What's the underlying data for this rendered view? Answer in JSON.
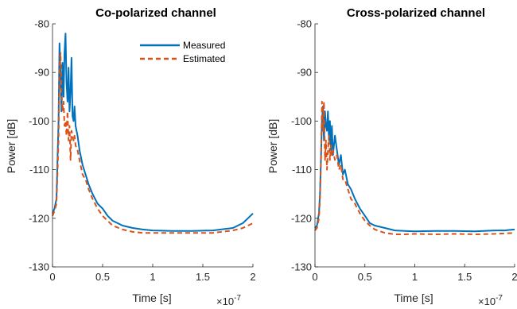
{
  "chart_data": [
    {
      "type": "line",
      "title": "Co-polarized channel",
      "xlabel": "Time [s]",
      "ylabel": "Power [dB]",
      "x_exponent_label": "×10",
      "x_exponent_power": "-7",
      "xlim": [
        0,
        2
      ],
      "ylim": [
        -130,
        -80
      ],
      "x_ticks": [
        "0",
        "0.5",
        "1",
        "1.5",
        "2"
      ],
      "y_ticks": [
        "-80",
        "-90",
        "-100",
        "-110",
        "-120",
        "-130"
      ],
      "legend": "top-right",
      "grid": false,
      "series": [
        {
          "name": "Measured",
          "color": "#0072BD",
          "style": "solid",
          "x": [
            0,
            0.02,
            0.04,
            0.06,
            0.07,
            0.08,
            0.09,
            0.1,
            0.11,
            0.12,
            0.13,
            0.14,
            0.15,
            0.16,
            0.17,
            0.18,
            0.19,
            0.2,
            0.21,
            0.22,
            0.23,
            0.25,
            0.27,
            0.3,
            0.33,
            0.36,
            0.4,
            0.45,
            0.5,
            0.55,
            0.6,
            0.7,
            0.8,
            0.9,
            1.0,
            1.2,
            1.4,
            1.6,
            1.8,
            1.9,
            1.95,
            2.0
          ],
          "y": [
            -119,
            -118,
            -116,
            -100,
            -84,
            -90,
            -98,
            -88,
            -95,
            -86,
            -82,
            -92,
            -96,
            -89,
            -98,
            -94,
            -87,
            -99,
            -100,
            -97,
            -101,
            -103,
            -106,
            -109,
            -111,
            -113,
            -115,
            -117,
            -118,
            -119.5,
            -120.5,
            -121.5,
            -122,
            -122.3,
            -122.5,
            -122.6,
            -122.6,
            -122.5,
            -122,
            -121,
            -120,
            -119
          ]
        },
        {
          "name": "Estimated",
          "color": "#D95319",
          "style": "dashed",
          "x": [
            0,
            0.02,
            0.04,
            0.06,
            0.07,
            0.08,
            0.09,
            0.1,
            0.11,
            0.12,
            0.13,
            0.14,
            0.15,
            0.16,
            0.17,
            0.18,
            0.19,
            0.2,
            0.21,
            0.22,
            0.23,
            0.25,
            0.27,
            0.3,
            0.33,
            0.36,
            0.4,
            0.45,
            0.5,
            0.55,
            0.6,
            0.7,
            0.8,
            0.9,
            1.0,
            1.2,
            1.4,
            1.6,
            1.8,
            1.9,
            1.95,
            2.0
          ],
          "y": [
            -119.5,
            -118.5,
            -117,
            -104,
            -89,
            -86,
            -94,
            -98,
            -96,
            -101,
            -100,
            -103,
            -98,
            -104,
            -101,
            -108,
            -102,
            -103,
            -104,
            -103,
            -105,
            -106,
            -108,
            -111,
            -112,
            -114,
            -116,
            -118,
            -119.5,
            -120.5,
            -121.5,
            -122.3,
            -122.8,
            -123,
            -123,
            -123,
            -123,
            -123,
            -122.5,
            -122,
            -121.5,
            -121
          ]
        }
      ]
    },
    {
      "type": "line",
      "title": "Cross-polarized channel",
      "xlabel": "Time [s]",
      "ylabel": "Power [dB]",
      "x_exponent_label": "×10",
      "x_exponent_power": "-7",
      "xlim": [
        0,
        2
      ],
      "ylim": [
        -130,
        -80
      ],
      "x_ticks": [
        "0",
        "0.5",
        "1",
        "1.5",
        "2"
      ],
      "y_ticks": [
        "-80",
        "-90",
        "-100",
        "-110",
        "-120",
        "-130"
      ],
      "grid": false,
      "series": [
        {
          "name": "Measured",
          "color": "#0072BD",
          "style": "solid",
          "x": [
            0,
            0.02,
            0.04,
            0.05,
            0.06,
            0.07,
            0.08,
            0.09,
            0.1,
            0.11,
            0.12,
            0.13,
            0.14,
            0.15,
            0.16,
            0.17,
            0.18,
            0.2,
            0.22,
            0.24,
            0.26,
            0.28,
            0.3,
            0.33,
            0.36,
            0.4,
            0.45,
            0.5,
            0.55,
            0.6,
            0.7,
            0.8,
            0.9,
            1.0,
            1.2,
            1.4,
            1.6,
            1.8,
            1.9,
            2.0
          ],
          "y": [
            -122,
            -121.5,
            -119,
            -115,
            -108,
            -100,
            -97,
            -104,
            -98,
            -101,
            -102,
            -98,
            -104,
            -100,
            -106,
            -101,
            -107,
            -103,
            -106,
            -109,
            -107,
            -111,
            -110,
            -113,
            -114,
            -116,
            -118,
            -119.5,
            -121,
            -121.5,
            -122,
            -122.5,
            -122.6,
            -122.7,
            -122.6,
            -122.6,
            -122.7,
            -122.5,
            -122.5,
            -122.3
          ]
        },
        {
          "name": "Estimated",
          "color": "#D95319",
          "style": "dashed",
          "x": [
            0,
            0.02,
            0.04,
            0.05,
            0.06,
            0.07,
            0.08,
            0.09,
            0.1,
            0.11,
            0.12,
            0.13,
            0.14,
            0.15,
            0.16,
            0.17,
            0.18,
            0.2,
            0.22,
            0.24,
            0.26,
            0.28,
            0.3,
            0.33,
            0.36,
            0.4,
            0.45,
            0.5,
            0.55,
            0.6,
            0.7,
            0.8,
            0.9,
            1.0,
            1.2,
            1.4,
            1.6,
            1.8,
            1.9,
            2.0
          ],
          "y": [
            -122.5,
            -122,
            -120,
            -116,
            -109,
            -96,
            -102,
            -96,
            -108,
            -104,
            -110,
            -106,
            -103,
            -108,
            -105,
            -107,
            -106,
            -108,
            -107,
            -110,
            -109,
            -112,
            -112,
            -114,
            -116,
            -117,
            -119,
            -120.5,
            -121.5,
            -122.3,
            -123,
            -123.3,
            -123.3,
            -123.2,
            -123.3,
            -123.2,
            -123.3,
            -123.2,
            -123.1,
            -123
          ]
        }
      ]
    }
  ]
}
